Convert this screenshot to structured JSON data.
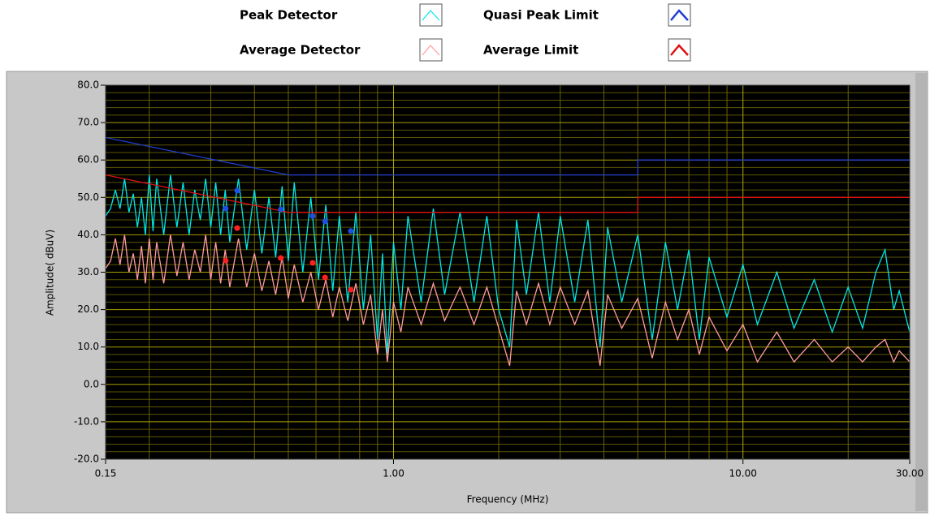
{
  "chart_data": {
    "type": "line",
    "log_x": true,
    "grid": true,
    "xlabel": "Frequency (MHz)",
    "ylabel": "Amplitude( dBuV)",
    "xlim": [
      0.15,
      30
    ],
    "ylim": [
      -20,
      80
    ],
    "xticks": [
      0.15,
      {
        "value": 1,
        "label": "1.00"
      },
      {
        "value": 10,
        "label": "10.00"
      },
      {
        "value": 30,
        "label": "30.00"
      }
    ],
    "xminorticks": [
      0.2,
      0.3,
      0.4,
      0.5,
      0.6,
      0.7,
      0.8,
      0.9,
      2,
      3,
      4,
      5,
      6,
      7,
      8,
      9,
      20
    ],
    "yticks": [
      {
        "value": 80,
        "label": "80.0"
      },
      {
        "value": 70,
        "label": "70.0"
      },
      {
        "value": 60,
        "label": "60.0"
      },
      {
        "value": 50,
        "label": "50.0"
      },
      {
        "value": 40,
        "label": "40.0"
      },
      {
        "value": 30,
        "label": "30.0"
      },
      {
        "value": 20,
        "label": "20.0"
      },
      {
        "value": 10,
        "label": "10.0"
      },
      {
        "value": 0,
        "label": "0.0"
      },
      {
        "value": -10,
        "label": "-10.0"
      },
      {
        "value": -20,
        "label": "-20.0"
      }
    ],
    "yminorticks": [
      78,
      76,
      74,
      72,
      68,
      66,
      64,
      62,
      58,
      56,
      54,
      52,
      48,
      46,
      44,
      42,
      38,
      36,
      34,
      32,
      28,
      26,
      24,
      22,
      18,
      16,
      14,
      12,
      8,
      6,
      4,
      2,
      -2,
      -4,
      -6,
      -8,
      -12,
      -14,
      -16,
      -18
    ],
    "series": [
      {
        "name": "Peak Detector",
        "color": "#00e8e8",
        "x": [
          0.15,
          0.155,
          0.16,
          0.165,
          0.17,
          0.175,
          0.18,
          0.185,
          0.19,
          0.195,
          0.2,
          0.205,
          0.21,
          0.22,
          0.23,
          0.24,
          0.25,
          0.26,
          0.27,
          0.28,
          0.29,
          0.3,
          0.31,
          0.32,
          0.33,
          0.34,
          0.36,
          0.38,
          0.4,
          0.42,
          0.44,
          0.46,
          0.48,
          0.5,
          0.52,
          0.55,
          0.58,
          0.61,
          0.64,
          0.67,
          0.7,
          0.74,
          0.78,
          0.82,
          0.86,
          0.9,
          0.93,
          0.96,
          1,
          1.05,
          1.1,
          1.2,
          1.3,
          1.4,
          1.55,
          1.7,
          1.85,
          2,
          2.15,
          2.25,
          2.4,
          2.6,
          2.8,
          3,
          3.3,
          3.6,
          3.9,
          4.1,
          4.5,
          5,
          5.5,
          6,
          6.5,
          7,
          7.5,
          8,
          9,
          10,
          11,
          12.5,
          14,
          16,
          18,
          20,
          22,
          24,
          25.5,
          27,
          28,
          30
        ],
        "values": [
          45,
          47,
          52,
          47,
          55,
          46,
          51,
          42,
          50,
          40,
          56,
          41,
          55,
          40,
          56,
          42,
          54,
          40,
          52,
          44,
          55,
          42,
          54,
          40,
          52,
          38,
          55,
          36,
          52,
          35,
          50,
          34,
          53,
          33,
          54,
          30,
          50,
          28,
          48,
          25,
          45,
          22,
          46,
          20,
          40,
          12,
          35,
          8,
          38,
          20,
          45,
          22,
          47,
          24,
          46,
          22,
          45,
          20,
          10,
          44,
          24,
          46,
          22,
          45,
          22,
          44,
          10,
          42,
          22,
          40,
          12,
          38,
          20,
          36,
          12,
          34,
          18,
          32,
          16,
          30,
          15,
          28,
          14,
          26,
          15,
          30,
          36,
          20,
          25,
          14
        ]
      },
      {
        "name": "Average Detector",
        "color": "#ff9c9c",
        "x": [
          0.15,
          0.155,
          0.16,
          0.165,
          0.17,
          0.175,
          0.18,
          0.185,
          0.19,
          0.195,
          0.2,
          0.205,
          0.21,
          0.22,
          0.23,
          0.24,
          0.25,
          0.26,
          0.27,
          0.28,
          0.29,
          0.3,
          0.31,
          0.32,
          0.33,
          0.34,
          0.36,
          0.38,
          0.4,
          0.42,
          0.44,
          0.46,
          0.48,
          0.5,
          0.52,
          0.55,
          0.58,
          0.61,
          0.64,
          0.67,
          0.7,
          0.74,
          0.78,
          0.82,
          0.86,
          0.9,
          0.93,
          0.96,
          1,
          1.05,
          1.1,
          1.2,
          1.3,
          1.4,
          1.55,
          1.7,
          1.85,
          2,
          2.15,
          2.25,
          2.4,
          2.6,
          2.8,
          3,
          3.3,
          3.6,
          3.9,
          4.1,
          4.5,
          5,
          5.5,
          6,
          6.5,
          7,
          7.5,
          8,
          9,
          10,
          11,
          12.5,
          14,
          16,
          18,
          20,
          22,
          24,
          25.5,
          27,
          28,
          30
        ],
        "values": [
          31,
          33,
          39,
          32,
          40,
          30,
          35,
          28,
          37,
          27,
          39,
          28,
          38,
          27,
          40,
          29,
          38,
          28,
          36,
          30,
          40,
          28,
          38,
          27,
          36,
          26,
          39,
          26,
          35,
          25,
          33,
          24,
          34,
          23,
          32,
          22,
          30,
          20,
          28,
          18,
          26,
          17,
          27,
          16,
          24,
          8,
          20,
          6,
          22,
          14,
          26,
          16,
          27,
          17,
          26,
          16,
          26,
          15,
          5,
          25,
          16,
          27,
          16,
          26,
          16,
          25,
          5,
          24,
          15,
          23,
          7,
          22,
          12,
          20,
          8,
          18,
          9,
          16,
          6,
          14,
          6,
          12,
          6,
          10,
          6,
          10,
          12,
          6,
          9,
          6
        ]
      },
      {
        "name": "Quasi Peak Limit",
        "color": "#1f3fd0",
        "x": [
          0.15,
          0.5,
          5,
          5,
          30
        ],
        "values": [
          66,
          56,
          56,
          60,
          60
        ]
      },
      {
        "name": "Average Limit",
        "color": "#e01010",
        "x": [
          0.15,
          0.5,
          5,
          5,
          30
        ],
        "values": [
          56,
          46,
          46,
          50,
          50
        ]
      }
    ],
    "markers": [
      {
        "color": "#1f4fe0",
        "x": [
          0.331,
          0.357,
          0.476,
          0.587,
          0.637,
          0.755
        ],
        "values": [
          47,
          51.8,
          46.8,
          45,
          43.6,
          41
        ]
      },
      {
        "color": "#ff2020",
        "x": [
          0.331,
          0.357,
          0.476,
          0.587,
          0.637,
          0.755
        ],
        "values": [
          33.1,
          41.8,
          33.8,
          32.5,
          28.6,
          25.3
        ]
      }
    ]
  }
}
